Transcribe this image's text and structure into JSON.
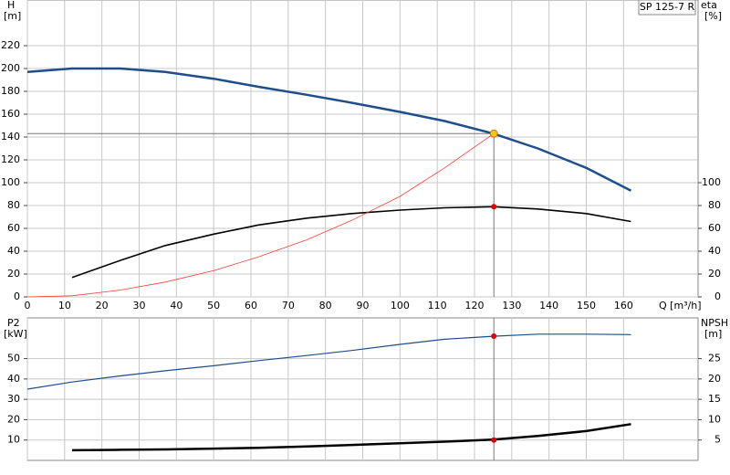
{
  "chart_data": [
    {
      "type": "line",
      "title": "SP 125-7 R",
      "y_label": "H",
      "y_unit": "[m]",
      "y2_label": "eta",
      "y2_unit": "[%]",
      "x_label": "Q [m³/h]",
      "xlim": [
        0,
        180
      ],
      "xticks": [
        0,
        10,
        20,
        30,
        40,
        50,
        60,
        70,
        80,
        90,
        100,
        110,
        120,
        130,
        140,
        150,
        160
      ],
      "ylim": [
        0,
        260
      ],
      "yticks": [
        0,
        20,
        40,
        60,
        80,
        100,
        120,
        140,
        160,
        180,
        200,
        220
      ],
      "y2lim": [
        0,
        260
      ],
      "y2ticks": [
        0,
        20,
        40,
        60,
        80,
        100
      ],
      "grid": true,
      "show_x_tick_labels": true,
      "series": [
        {
          "color": "#1f4e8c",
          "width": 2.5,
          "x": [
            0,
            12,
            25,
            37,
            50,
            62,
            75,
            87,
            100,
            112,
            125,
            137,
            150,
            162
          ],
          "values": [
            197,
            200,
            200,
            197,
            191,
            184,
            177,
            170,
            162,
            154,
            143,
            130,
            113,
            93
          ]
        },
        {
          "color": "#000000",
          "width": 1.6,
          "axis": "y2",
          "x": [
            12,
            25,
            37,
            50,
            62,
            75,
            87,
            100,
            112,
            125,
            137,
            150,
            162
          ],
          "values": [
            17,
            32,
            45,
            55,
            63,
            69,
            73,
            76,
            78,
            79,
            77,
            73,
            66
          ]
        },
        {
          "color": "#ff3b3b",
          "width": 0.8,
          "x": [
            0,
            12,
            25,
            37,
            50,
            62,
            75,
            87,
            100,
            112,
            125.2
          ],
          "values": [
            0,
            1,
            6,
            13,
            23,
            35,
            50,
            67,
            88,
            113,
            143
          ]
        }
      ],
      "markers": [
        {
          "x": 125.2,
          "y": 143,
          "color": "#f5c518",
          "guide": true
        },
        {
          "x": 125.2,
          "y": 79,
          "axis": "y2",
          "color": "#e00000"
        }
      ]
    },
    {
      "type": "line",
      "y_label": "P2",
      "y_unit": "[kW]",
      "y2_label": "NPSH",
      "y2_unit": "[m]",
      "xlim": [
        0,
        180
      ],
      "xticks": [
        0,
        10,
        20,
        30,
        40,
        50,
        60,
        70,
        80,
        90,
        100,
        110,
        120,
        130,
        140,
        150,
        160
      ],
      "ylim": [
        0,
        70
      ],
      "yticks": [
        10,
        20,
        30,
        40,
        50
      ],
      "y2lim": [
        0,
        35
      ],
      "y2ticks": [
        5,
        10,
        15,
        20,
        25
      ],
      "grid": true,
      "show_x_tick_labels": false,
      "series": [
        {
          "color": "#1f4e8c",
          "width": 1.2,
          "x": [
            0,
            12,
            25,
            37,
            50,
            62,
            75,
            87,
            100,
            112,
            125,
            137,
            150,
            162
          ],
          "values": [
            35,
            38.5,
            41.5,
            44,
            46.5,
            49,
            51.5,
            54,
            57,
            59.5,
            61,
            62,
            62,
            61.8
          ]
        },
        {
          "color": "#000000",
          "width": 2.5,
          "axis": "y2",
          "x": [
            12,
            25,
            37,
            50,
            62,
            75,
            87,
            100,
            112,
            125,
            137,
            150,
            162
          ],
          "values": [
            2.5,
            2.6,
            2.7,
            2.9,
            3.1,
            3.4,
            3.8,
            4.2,
            4.6,
            5.1,
            6,
            7.2,
            8.9
          ]
        }
      ],
      "markers": [
        {
          "x": 125.2,
          "y": 61,
          "color": "#e00000",
          "guide": true
        },
        {
          "x": 125.2,
          "y": 5,
          "axis": "y2",
          "color": "#e00000"
        }
      ]
    }
  ]
}
